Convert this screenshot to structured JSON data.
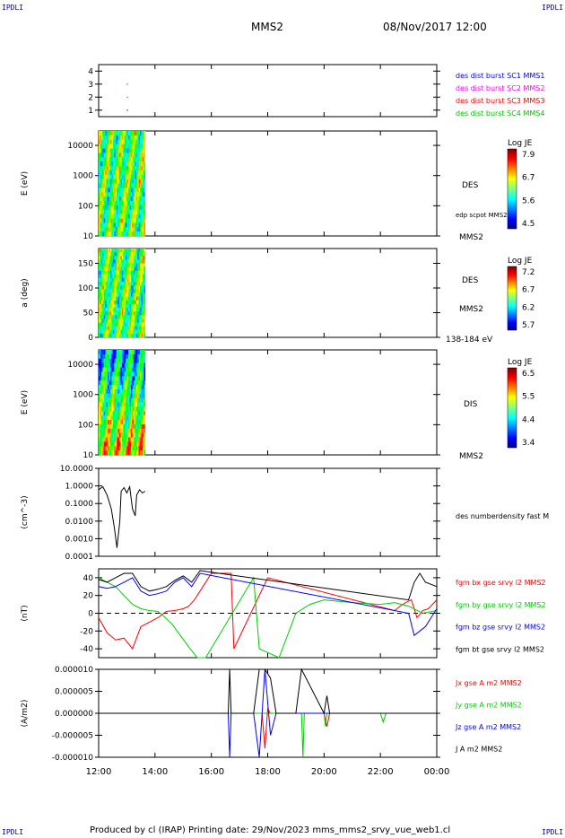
{
  "header": {
    "corner_label": "IPDLI",
    "spacecraft": "MMS2",
    "datetime": "08/Nov/2017 12:00"
  },
  "footer": {
    "text": "Produced by cl (IRAP)   Printing date: 29/Nov/2023   mms_mms2_srvy_vue_web1.cl"
  },
  "time_axis": {
    "ticks": [
      "12:00",
      "14:00",
      "16:00",
      "18:00",
      "20:00",
      "22:00",
      "00:00"
    ],
    "start_hour": 12,
    "end_hour": 24
  },
  "chart_data": [
    {
      "type": "scatter",
      "panel": "burst",
      "yticks": [
        "1",
        "2",
        "3",
        "4"
      ],
      "ylim": [
        0.5,
        4.5
      ],
      "legend": [
        {
          "label": "des dist burst SC1 MMS1",
          "color": "#0000ff"
        },
        {
          "label": "des dist burst SC2 MMS2",
          "color": "#ff00ff"
        },
        {
          "label": "des dist burst SC3 MMS3",
          "color": "#ff0000"
        },
        {
          "label": "des dist burst SC4 MMS4",
          "color": "#00c000"
        }
      ],
      "points": [
        {
          "t": 13.0,
          "y": 1,
          "color": "#0000ff"
        },
        {
          "t": 13.0,
          "y": 2,
          "color": "#ff00ff"
        },
        {
          "t": 13.0,
          "y": 3,
          "color": "#ff0000"
        }
      ]
    },
    {
      "type": "heatmap",
      "panel": "des-energy",
      "ylabel": "E (eV)",
      "yticks": [
        "10",
        "100",
        "1000",
        "10000"
      ],
      "ylim": [
        10,
        30000
      ],
      "log": true,
      "data_end_hour": 13.65,
      "right_labels": [
        "DES",
        "edp scpot MMS2",
        "MMS2"
      ],
      "colorbar": {
        "title": "Log JE",
        "ticks": [
          "7.9",
          "6.7",
          "5.6",
          "4.5"
        ]
      }
    },
    {
      "type": "heatmap",
      "panel": "des-pitch",
      "ylabel": "a (deg)",
      "yticks": [
        "0",
        "50",
        "100",
        "150"
      ],
      "ylim": [
        0,
        180
      ],
      "data_end_hour": 13.65,
      "right_labels": [
        "DES",
        "MMS2",
        "138-184 eV"
      ],
      "colorbar": {
        "title": "Log JE",
        "ticks": [
          "7.2",
          "6.7",
          "6.2",
          "5.7"
        ]
      }
    },
    {
      "type": "heatmap",
      "panel": "dis-energy",
      "ylabel": "E (eV)",
      "yticks": [
        "10",
        "100",
        "1000",
        "10000"
      ],
      "ylim": [
        10,
        30000
      ],
      "log": true,
      "data_end_hour": 13.65,
      "right_labels": [
        "DIS",
        "MMS2"
      ],
      "colorbar": {
        "title": "Log JE",
        "ticks": [
          "6.5",
          "5.5",
          "4.4",
          "3.4"
        ]
      }
    },
    {
      "type": "line",
      "panel": "density",
      "ylabel": "(cm^-3)",
      "yticks": [
        "0.0001",
        "0.0010",
        "0.0100",
        "0.1000",
        "1.0000",
        "10.0000"
      ],
      "ylim": [
        0.0001,
        10
      ],
      "log": true,
      "right_labels": [
        "des numberdensity fast M"
      ],
      "series": [
        {
          "name": "des numberdensity fast M",
          "color": "#000000",
          "x": [
            12.0,
            12.15,
            12.3,
            12.45,
            12.55,
            12.65,
            12.75,
            12.8,
            12.9,
            13.0,
            13.1,
            13.2,
            13.3,
            13.35,
            13.45,
            13.55,
            13.65
          ],
          "y": [
            0.6,
            0.9,
            0.3,
            0.05,
            0.005,
            0.0003,
            0.01,
            0.5,
            0.8,
            0.4,
            0.9,
            0.05,
            0.02,
            0.3,
            0.6,
            0.4,
            0.5
          ]
        }
      ]
    },
    {
      "type": "line",
      "panel": "magnetic-field",
      "ylabel": "(nT)",
      "yticks": [
        "-40",
        "-20",
        "0",
        "20",
        "40"
      ],
      "ylim": [
        -50,
        50
      ],
      "zero_line": true,
      "series": [
        {
          "name": "fgm bx gse srvy l2 MMS2",
          "color": "#ff0000",
          "x": [
            12.0,
            12.3,
            12.6,
            12.9,
            13.2,
            13.5,
            13.8,
            14.1,
            14.4,
            14.7,
            15.0,
            15.2,
            15.4,
            15.6,
            16.0,
            16.7,
            16.8,
            18.0,
            22.5,
            22.7,
            22.9,
            23.1,
            23.3,
            23.5,
            23.7,
            24.0
          ],
          "y": [
            -5,
            -22,
            -30,
            -28,
            -40,
            -15,
            -10,
            -5,
            2,
            3,
            5,
            8,
            15,
            25,
            45,
            45,
            -40,
            40,
            3,
            8,
            12,
            15,
            -5,
            3,
            5,
            15
          ]
        },
        {
          "name": "fgm by gse srvy l2 MMS2",
          "color": "#00cc00",
          "x": [
            12.0,
            12.3,
            12.6,
            12.9,
            13.2,
            13.5,
            13.8,
            14.1,
            14.3,
            14.6,
            14.9,
            15.2,
            15.5,
            15.8,
            17.5,
            17.7,
            18.4,
            18.7,
            19.0,
            19.5,
            20.0,
            21.0,
            22.0,
            22.5,
            23.0,
            23.5,
            24.0
          ],
          "y": [
            40,
            35,
            30,
            20,
            10,
            5,
            3,
            2,
            -3,
            -12,
            -25,
            -38,
            -50,
            -50,
            40,
            -40,
            -50,
            -25,
            0,
            10,
            15,
            12,
            10,
            12,
            8,
            0,
            3
          ]
        },
        {
          "name": "fgm bz gse srvy l2 MMS2",
          "color": "#0000ff",
          "x": [
            12.0,
            12.3,
            12.6,
            12.9,
            13.2,
            13.5,
            13.8,
            14.1,
            14.4,
            14.7,
            15.0,
            15.3,
            15.6,
            23.0,
            23.2,
            23.4,
            23.6,
            24.0
          ],
          "y": [
            30,
            28,
            30,
            35,
            40,
            25,
            20,
            22,
            25,
            35,
            40,
            30,
            45,
            0,
            -25,
            -20,
            -15,
            5
          ]
        },
        {
          "name": "fgm bt gse srvy l2 MMS2",
          "color": "#000000",
          "x": [
            12.0,
            12.3,
            12.6,
            12.9,
            13.2,
            13.5,
            13.8,
            14.1,
            14.4,
            14.7,
            15.0,
            15.3,
            15.6,
            23.0,
            23.2,
            23.4,
            23.6,
            24.0
          ],
          "y": [
            38,
            35,
            40,
            45,
            45,
            30,
            25,
            27,
            30,
            37,
            42,
            35,
            48,
            15,
            35,
            45,
            35,
            30
          ]
        }
      ]
    },
    {
      "type": "line",
      "panel": "current-density",
      "ylabel": "(A/m2)",
      "yticks": [
        "-0.000010",
        "-0.000005",
        "0.000000",
        "0.000005",
        "0.000010"
      ],
      "ylim": [
        -1e-05,
        1e-05
      ],
      "series": [
        {
          "name": "Jx gse A m2 MMS2",
          "color": "#ff0000",
          "x": [
            12.0,
            16.0,
            17.8,
            17.9,
            18.0,
            18.1,
            20.0,
            20.1,
            20.2,
            24.0
          ],
          "y": [
            0,
            0,
            0,
            -8e-06,
            1e-06,
            0,
            0,
            -3e-06,
            0,
            0
          ]
        },
        {
          "name": "Jy gse A m2 MMS2",
          "color": "#00cc00",
          "x": [
            12.0,
            16.0,
            19.2,
            19.25,
            19.3,
            20.0,
            20.05,
            20.1,
            22.0,
            22.1,
            22.2,
            24.0
          ],
          "y": [
            0,
            0,
            0,
            -1e-05,
            0,
            0,
            -3e-06,
            0,
            0,
            -2e-06,
            0,
            0
          ]
        },
        {
          "name": "Jz gse A m2 MMS2",
          "color": "#0000ff",
          "x": [
            12.0,
            16.6,
            16.65,
            16.7,
            17.5,
            17.7,
            17.9,
            18.1,
            18.3,
            24.0
          ],
          "y": [
            0,
            0,
            -1e-05,
            0,
            0,
            -1e-05,
            1e-05,
            -5e-06,
            0,
            0
          ]
        },
        {
          "name": "J A m2 MMS2",
          "color": "#000000",
          "x": [
            12.0,
            16.6,
            16.65,
            16.7,
            17.5,
            17.7,
            17.9,
            18.1,
            18.3,
            19.0,
            19.2,
            20.0,
            20.1,
            20.2,
            24.0
          ],
          "y": [
            0,
            0,
            1e-05,
            0,
            0,
            1e-05,
            1e-05,
            8e-06,
            0,
            0,
            1e-05,
            0,
            4e-06,
            0,
            0
          ]
        }
      ]
    }
  ]
}
